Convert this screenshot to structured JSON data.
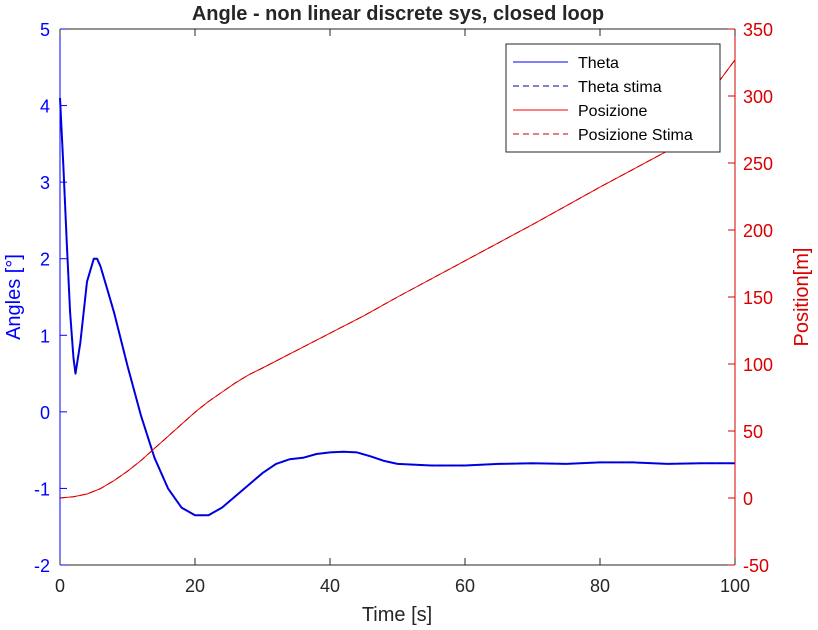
{
  "chart_data": {
    "type": "line",
    "title": "Angle - non linear discrete sys, closed loop",
    "xlabel": "Time [s]",
    "ylabel_left": "Angles [°]",
    "ylabel_right": "Position[m]",
    "xlim": [
      0,
      100
    ],
    "ylim_left": [
      -2,
      5
    ],
    "ylim_right": [
      -50,
      350
    ],
    "x_ticks": [
      0,
      20,
      40,
      60,
      80,
      100
    ],
    "y_ticks_left": [
      -2,
      -1,
      0,
      1,
      2,
      3,
      4,
      5
    ],
    "y_ticks_right": [
      -50,
      0,
      50,
      100,
      150,
      200,
      250,
      300,
      350
    ],
    "grid": false,
    "legend_position": "top-right",
    "colors": {
      "left_axis": "#0000ff",
      "right_axis": "#d90000",
      "theta": "#0000ff",
      "theta_est": "#0000a0",
      "position": "#ff0000",
      "position_est": "#c00000"
    },
    "series": [
      {
        "name": "Theta",
        "axis": "left",
        "style": "solid",
        "x": [
          0,
          0.5,
          1,
          1.5,
          2,
          2.3,
          3,
          4,
          5,
          5.5,
          6,
          7,
          8,
          10,
          12,
          14,
          16,
          18,
          20,
          22,
          24,
          26,
          28,
          30,
          32,
          34,
          36,
          38,
          40,
          42,
          44,
          46,
          48,
          50,
          55,
          60,
          65,
          70,
          75,
          80,
          85,
          90,
          95,
          100
        ],
        "y": [
          4.1,
          3.2,
          2.2,
          1.3,
          0.7,
          0.5,
          0.9,
          1.7,
          2.0,
          2.0,
          1.9,
          1.6,
          1.3,
          0.6,
          -0.05,
          -0.6,
          -1.0,
          -1.25,
          -1.35,
          -1.35,
          -1.25,
          -1.1,
          -0.95,
          -0.8,
          -0.68,
          -0.62,
          -0.6,
          -0.55,
          -0.53,
          -0.52,
          -0.53,
          -0.58,
          -0.64,
          -0.68,
          -0.7,
          -0.7,
          -0.68,
          -0.67,
          -0.68,
          -0.66,
          -0.66,
          -0.68,
          -0.67,
          -0.67
        ]
      },
      {
        "name": "Theta stima",
        "axis": "left",
        "style": "dashed",
        "x": [
          0,
          0.5,
          1,
          1.5,
          2,
          2.3,
          3,
          4,
          5,
          5.5,
          6,
          7,
          8,
          10,
          12,
          14,
          16,
          18,
          20,
          22,
          24,
          26,
          28,
          30,
          32,
          34,
          36,
          38,
          40,
          42,
          44,
          46,
          48,
          50,
          55,
          60,
          65,
          70,
          75,
          80,
          85,
          90,
          95,
          100
        ],
        "y": [
          4.1,
          3.2,
          2.2,
          1.3,
          0.7,
          0.5,
          0.9,
          1.7,
          2.0,
          2.0,
          1.9,
          1.6,
          1.3,
          0.6,
          -0.05,
          -0.6,
          -1.0,
          -1.25,
          -1.35,
          -1.35,
          -1.25,
          -1.1,
          -0.95,
          -0.8,
          -0.68,
          -0.62,
          -0.6,
          -0.55,
          -0.53,
          -0.52,
          -0.53,
          -0.58,
          -0.64,
          -0.68,
          -0.7,
          -0.7,
          -0.68,
          -0.67,
          -0.68,
          -0.66,
          -0.66,
          -0.68,
          -0.67,
          -0.67
        ]
      },
      {
        "name": "Posizione",
        "axis": "right",
        "style": "solid",
        "x": [
          0,
          2,
          4,
          6,
          8,
          10,
          12,
          14,
          16,
          18,
          20,
          22,
          24,
          26,
          28,
          30,
          35,
          40,
          45,
          50,
          60,
          70,
          80,
          90,
          100
        ],
        "y": [
          0,
          1,
          3,
          7,
          13,
          20,
          28,
          37,
          46,
          55,
          64,
          72,
          79,
          86,
          92,
          97,
          110,
          123,
          136,
          150,
          177,
          204,
          232,
          259,
          327
        ]
      },
      {
        "name": "Posizione Stima",
        "axis": "right",
        "style": "dashed",
        "x": [
          0,
          2,
          4,
          6,
          8,
          10,
          12,
          14,
          16,
          18,
          20,
          22,
          24,
          26,
          28,
          30,
          35,
          40,
          45,
          50,
          60,
          70,
          80,
          90,
          100
        ],
        "y": [
          0,
          1,
          3,
          7,
          13,
          20,
          28,
          37,
          46,
          55,
          64,
          72,
          79,
          86,
          92,
          97,
          110,
          123,
          136,
          150,
          177,
          204,
          232,
          259,
          327
        ]
      }
    ]
  }
}
